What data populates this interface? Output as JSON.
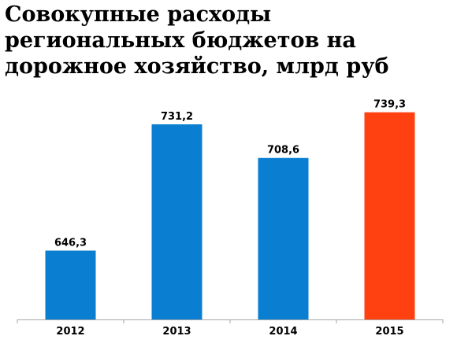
{
  "chart_data": {
    "type": "bar",
    "title": "Совокупные расходы региональных бюджетов на дорожное хозяйство, млрд руб",
    "xlabel": "",
    "ylabel": "",
    "categories": [
      "2012",
      "2013",
      "2014",
      "2015"
    ],
    "values": [
      646.3,
      731.2,
      708.6,
      739.3
    ],
    "value_labels": [
      "646,3",
      "731,2",
      "708,6",
      "739,3"
    ],
    "colors": [
      "#0a7fd2",
      "#0a7fd2",
      "#0a7fd2",
      "#ff4010"
    ],
    "ylim": [
      600,
      750
    ],
    "grid": false,
    "legend": "none"
  }
}
